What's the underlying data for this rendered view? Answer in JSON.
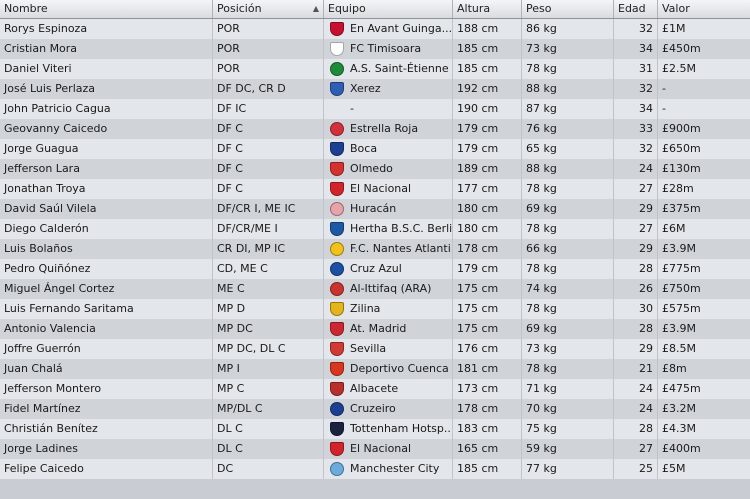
{
  "headers": {
    "name": "Nombre",
    "position": "Posición",
    "club": "Equipo",
    "height": "Altura",
    "weight": "Peso",
    "age": "Edad",
    "value": "Valor"
  },
  "rows": [
    {
      "name": "Rorys Espinoza",
      "position": "POR",
      "club": "En Avant Guinga...",
      "height": "188 cm",
      "weight": "86 kg",
      "age": "32",
      "value": "£1M",
      "badge": {
        "icon": "eag-crest-icon",
        "color": "#c8102e",
        "shape": "shield"
      }
    },
    {
      "name": "Cristian Mora",
      "position": "POR",
      "club": "FC Timisoara",
      "height": "185 cm",
      "weight": "73 kg",
      "age": "34",
      "value": "£450m",
      "badge": {
        "icon": "timisoara-crest-icon",
        "color": "#ffffff",
        "shape": "shield"
      }
    },
    {
      "name": "Daniel Viteri",
      "position": "POR",
      "club": "A.S. Saint-Étienne",
      "height": "185 cm",
      "weight": "78 kg",
      "age": "31",
      "value": "£2.5M",
      "badge": {
        "icon": "saint-etienne-crest-icon",
        "color": "#1e8b3a",
        "shape": "circle"
      }
    },
    {
      "name": "José Luis Perlaza",
      "position": "DF DC, CR D",
      "club": "Xerez",
      "height": "192 cm",
      "weight": "88 kg",
      "age": "32",
      "value": "-",
      "badge": {
        "icon": "xerez-crest-icon",
        "color": "#2f5fb5",
        "shape": "shield"
      }
    },
    {
      "name": "John Patricio Cagua",
      "position": "DF IC",
      "club": "-",
      "height": "190 cm",
      "weight": "87 kg",
      "age": "34",
      "value": "-",
      "badge": {
        "icon": "no-crest",
        "color": "",
        "shape": "none"
      }
    },
    {
      "name": "Geovanny Caicedo",
      "position": "DF C",
      "club": "Estrella Roja",
      "height": "179 cm",
      "weight": "76 kg",
      "age": "33",
      "value": "£900m",
      "badge": {
        "icon": "estrella-roja-crest-icon",
        "color": "#d0313b",
        "shape": "circle"
      }
    },
    {
      "name": "Jorge Guagua",
      "position": "DF C",
      "club": "Boca",
      "height": "179 cm",
      "weight": "65 kg",
      "age": "32",
      "value": "£650m",
      "badge": {
        "icon": "boca-crest-icon",
        "color": "#1c3f94",
        "shape": "shield"
      }
    },
    {
      "name": "Jefferson Lara",
      "position": "DF C",
      "club": "Olmedo",
      "height": "189 cm",
      "weight": "88 kg",
      "age": "24",
      "value": "£130m",
      "badge": {
        "icon": "olmedo-crest-icon",
        "color": "#d5312e",
        "shape": "shield"
      }
    },
    {
      "name": "Jonathan Troya",
      "position": "DF C",
      "club": "El Nacional",
      "height": "177 cm",
      "weight": "78 kg",
      "age": "27",
      "value": "£28m",
      "badge": {
        "icon": "el-nacional-crest-icon",
        "color": "#d4242b",
        "shape": "shield"
      }
    },
    {
      "name": "David Saúl Vilela",
      "position": "DF/CR I, ME IC",
      "club": "Huracán",
      "height": "180 cm",
      "weight": "69 kg",
      "age": "29",
      "value": "£375m",
      "badge": {
        "icon": "huracan-crest-icon",
        "color": "#e8a2aa",
        "shape": "circle"
      }
    },
    {
      "name": "Diego Calderón",
      "position": "DF/CR/ME I",
      "club": "Hertha B.S.C. Berlin",
      "height": "180 cm",
      "weight": "78 kg",
      "age": "27",
      "value": "£6M",
      "badge": {
        "icon": "hertha-crest-icon",
        "color": "#1c5aa8",
        "shape": "shield"
      }
    },
    {
      "name": "Luis Bolaños",
      "position": "CR DI, MP IC",
      "club": "F.C. Nantes Atlanti...",
      "height": "178 cm",
      "weight": "66 kg",
      "age": "29",
      "value": "£3.9M",
      "badge": {
        "icon": "nantes-crest-icon",
        "color": "#f2c21b",
        "shape": "circle"
      }
    },
    {
      "name": "Pedro Quiñónez",
      "position": "CD, ME C",
      "club": "Cruz Azul",
      "height": "179 cm",
      "weight": "78 kg",
      "age": "28",
      "value": "£775m",
      "badge": {
        "icon": "cruz-azul-crest-icon",
        "color": "#1d4fa3",
        "shape": "circle"
      }
    },
    {
      "name": "Miguel Ángel Cortez",
      "position": "ME C",
      "club": "Al-Ittifaq (ARA)",
      "height": "175 cm",
      "weight": "74 kg",
      "age": "26",
      "value": "£750m",
      "badge": {
        "icon": "al-ittifaq-crest-icon",
        "color": "#c9342f",
        "shape": "circle"
      }
    },
    {
      "name": "Luis Fernando Saritama",
      "position": "MP D",
      "club": "Zilina",
      "height": "175 cm",
      "weight": "78 kg",
      "age": "30",
      "value": "£575m",
      "badge": {
        "icon": "zilina-crest-icon",
        "color": "#e3b51b",
        "shape": "shield"
      }
    },
    {
      "name": "Antonio Valencia",
      "position": "MP DC",
      "club": "At. Madrid",
      "height": "175 cm",
      "weight": "69 kg",
      "age": "28",
      "value": "£3.9M",
      "badge": {
        "icon": "atletico-crest-icon",
        "color": "#cf2732",
        "shape": "shield"
      }
    },
    {
      "name": "Joffre Guerrón",
      "position": "MP DC, DL C",
      "club": "Sevilla",
      "height": "176 cm",
      "weight": "73 kg",
      "age": "29",
      "value": "£8.5M",
      "badge": {
        "icon": "sevilla-crest-icon",
        "color": "#d23a35",
        "shape": "shield"
      }
    },
    {
      "name": "Juan Chalá",
      "position": "MP I",
      "club": "Deportivo Cuenca",
      "height": "181 cm",
      "weight": "78 kg",
      "age": "21",
      "value": "£8m",
      "badge": {
        "icon": "deportivo-cuenca-crest-icon",
        "color": "#d9361f",
        "shape": "shield"
      }
    },
    {
      "name": "Jefferson Montero",
      "position": "MP C",
      "club": "Albacete",
      "height": "173 cm",
      "weight": "71 kg",
      "age": "24",
      "value": "£475m",
      "badge": {
        "icon": "albacete-crest-icon",
        "color": "#b9302b",
        "shape": "shield"
      }
    },
    {
      "name": "Fidel Martínez",
      "position": "MP/DL C",
      "club": "Cruzeiro",
      "height": "178 cm",
      "weight": "70 kg",
      "age": "24",
      "value": "£3.2M",
      "badge": {
        "icon": "cruzeiro-crest-icon",
        "color": "#1c3f94",
        "shape": "circle"
      }
    },
    {
      "name": "Christián Benítez",
      "position": "DL C",
      "club": "Tottenham Hotsp...",
      "height": "183 cm",
      "weight": "75 kg",
      "age": "28",
      "value": "£4.3M",
      "badge": {
        "icon": "tottenham-crest-icon",
        "color": "#1b2240",
        "shape": "shield"
      }
    },
    {
      "name": "Jorge Ladines",
      "position": "DL C",
      "club": "El Nacional",
      "height": "165 cm",
      "weight": "59 kg",
      "age": "27",
      "value": "£400m",
      "badge": {
        "icon": "el-nacional-crest-icon",
        "color": "#d4242b",
        "shape": "shield"
      }
    },
    {
      "name": "Felipe Caicedo",
      "position": "DC",
      "club": "Manchester City",
      "height": "185 cm",
      "weight": "77 kg",
      "age": "25",
      "value": "£5M",
      "badge": {
        "icon": "manchester-city-crest-icon",
        "color": "#6cabdd",
        "shape": "circle"
      }
    }
  ]
}
